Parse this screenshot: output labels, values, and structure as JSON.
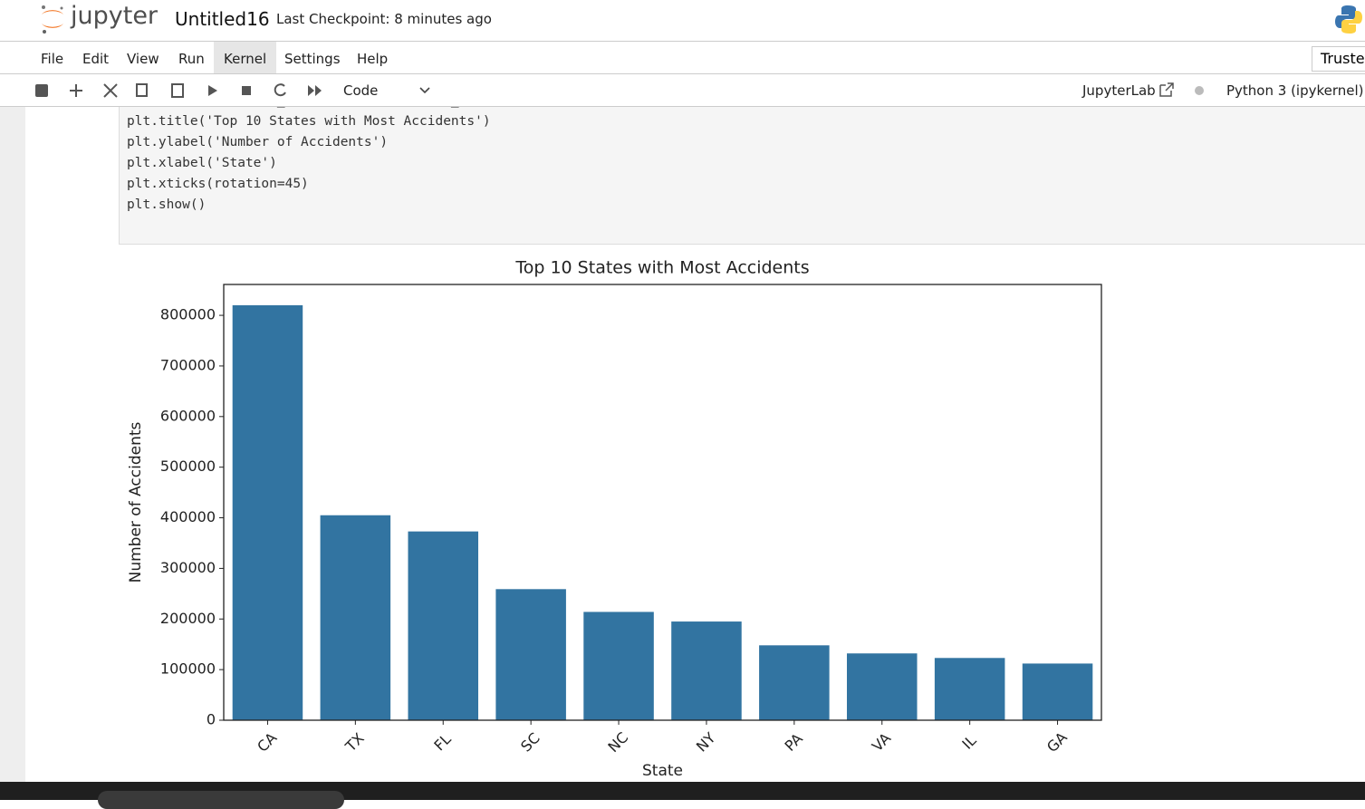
{
  "header": {
    "logo": "jupyter",
    "notebook_name": "Untitled16",
    "checkpoint": "Last Checkpoint: 8 minutes ago"
  },
  "menu": {
    "items": [
      "File",
      "Edit",
      "View",
      "Run",
      "Kernel",
      "Settings",
      "Help"
    ],
    "trusted": "Trusted"
  },
  "toolbar": {
    "cell_type": "Code",
    "jupyterlab": "JupyterLab",
    "kernel": "Python 3 (ipykernel)"
  },
  "cell": {
    "code": [
      "sns.barplot(x=state_counts.index, y=state_counts.values)",
      "plt.title('Top 10 States with Most Accidents')",
      "plt.ylabel('Number of Accidents')",
      "plt.xlabel('State')",
      "plt.xticks(rotation=45)",
      "plt.show()"
    ]
  },
  "chart_data": {
    "type": "bar",
    "title": "Top 10 States with Most Accidents",
    "xlabel": "State",
    "ylabel": "Number of Accidents",
    "categories": [
      "CA",
      "TX",
      "FL",
      "SC",
      "NC",
      "NY",
      "PA",
      "VA",
      "IL",
      "GA"
    ],
    "values": [
      820000,
      405000,
      373000,
      259000,
      214000,
      195000,
      148000,
      132000,
      123000,
      112000
    ],
    "color": "#3274a1",
    "ylim": [
      0,
      861000
    ],
    "yticks": [
      0,
      100000,
      200000,
      300000,
      400000,
      500000,
      600000,
      700000,
      800000
    ],
    "x_tick_rotation": 45
  }
}
